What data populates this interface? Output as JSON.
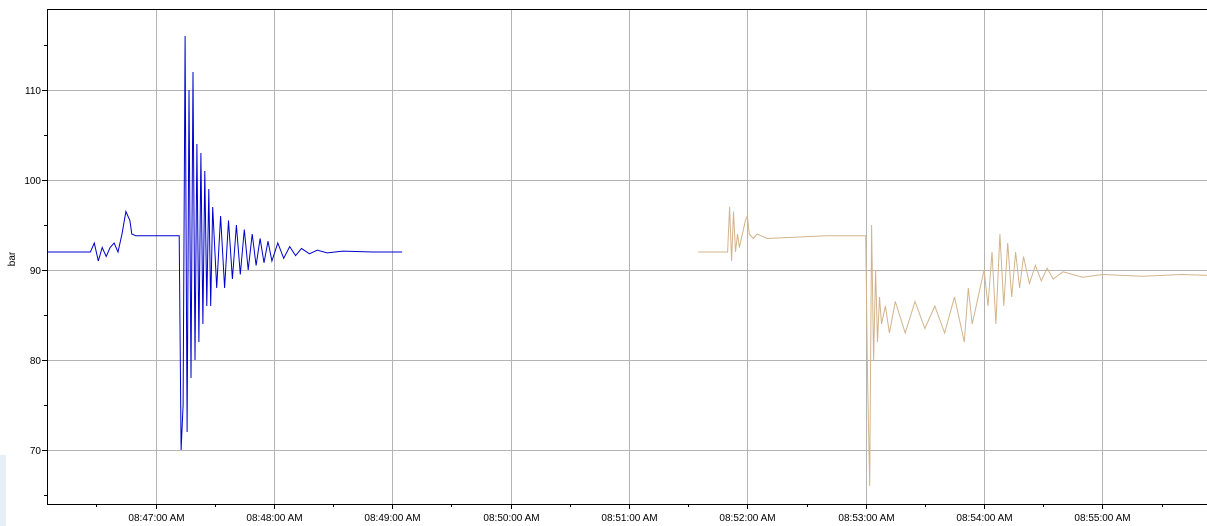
{
  "chart_data": {
    "type": "line",
    "title": "",
    "xlabel": "",
    "ylabel": "bar",
    "ylim": [
      64,
      119
    ],
    "xlim": [
      "08:46:05",
      "08:55:53"
    ],
    "grid": true,
    "legend": "none",
    "y_ticks": [
      70,
      80,
      90,
      100,
      110
    ],
    "y_tick_labels": [
      "70",
      "80",
      "90",
      "100",
      "110"
    ],
    "y_minor_ticks": [
      65,
      75,
      85,
      95,
      105,
      115
    ],
    "x_ticks": [
      "08:47:00",
      "08:48:00",
      "08:49:00",
      "08:50:00",
      "08:51:00",
      "08:52:00",
      "08:53:00",
      "08:54:00",
      "08:55:00"
    ],
    "x_tick_labels": [
      "08:47:00 AM",
      "08:48:00 AM",
      "08:49:00 AM",
      "08:50:00 AM",
      "08:51:00 AM",
      "08:52:00 AM",
      "08:53:00 AM",
      "08:54:00 AM",
      "08:55:00 AM"
    ],
    "series": [
      {
        "color": "#0000cc",
        "x": [
          "08:46:05",
          "08:46:20",
          "08:46:27",
          "08:46:29",
          "08:46:31",
          "08:46:33",
          "08:46:35",
          "08:46:37",
          "08:46:39",
          "08:46:41",
          "08:46:43",
          "08:46:45",
          "08:46:47",
          "08:46:48",
          "08:46:50",
          "08:46:53",
          "08:47:05",
          "08:47:12",
          "08:47:13",
          "08:47:14",
          "08:47:15",
          "08:47:16",
          "08:47:17",
          "08:47:18",
          "08:47:19",
          "08:47:20",
          "08:47:21",
          "08:47:22",
          "08:47:23",
          "08:47:24",
          "08:47:25",
          "08:47:26",
          "08:47:27",
          "08:47:28",
          "08:47:29",
          "08:47:31",
          "08:47:33",
          "08:47:35",
          "08:47:37",
          "08:47:39",
          "08:47:41",
          "08:47:43",
          "08:47:45",
          "08:47:47",
          "08:47:49",
          "08:47:51",
          "08:47:53",
          "08:47:55",
          "08:47:57",
          "08:47:59",
          "08:48:02",
          "08:48:05",
          "08:48:08",
          "08:48:11",
          "08:48:14",
          "08:48:18",
          "08:48:22",
          "08:48:27",
          "08:48:35",
          "08:48:50",
          "08:49:05"
        ],
        "y": [
          92,
          92,
          92,
          93,
          91,
          92.5,
          91.5,
          92.5,
          93,
          92,
          94,
          96.5,
          95.5,
          94,
          93.8,
          93.8,
          93.8,
          93.8,
          70,
          75,
          116,
          72,
          110,
          78,
          112,
          80,
          104,
          82,
          103,
          84,
          101,
          86,
          99,
          86,
          97,
          88,
          96,
          88,
          95.5,
          89,
          95,
          89.5,
          94.5,
          90,
          94,
          90.5,
          93.5,
          90.8,
          93.2,
          91,
          93,
          91.3,
          92.6,
          91.6,
          92.4,
          91.8,
          92.2,
          91.9,
          92.1,
          92,
          92
        ]
      },
      {
        "color": "#d2b48c",
        "x": [
          "08:51:35",
          "08:51:50",
          "08:51:51",
          "08:51:52",
          "08:51:53",
          "08:51:54",
          "08:51:55",
          "08:51:56",
          "08:51:57",
          "08:51:58",
          "08:51:59",
          "08:52:00",
          "08:52:01",
          "08:52:03",
          "08:52:05",
          "08:52:10",
          "08:52:40",
          "08:53:00",
          "08:53:01",
          "08:53:02",
          "08:53:03",
          "08:53:04",
          "08:53:05",
          "08:53:06",
          "08:53:07",
          "08:53:08",
          "08:53:10",
          "08:53:12",
          "08:53:15",
          "08:53:20",
          "08:53:25",
          "08:53:30",
          "08:53:35",
          "08:53:40",
          "08:53:45",
          "08:53:50",
          "08:53:52",
          "08:53:54",
          "08:53:56",
          "08:53:58",
          "08:54:00",
          "08:54:02",
          "08:54:04",
          "08:54:06",
          "08:54:08",
          "08:54:10",
          "08:54:12",
          "08:54:14",
          "08:54:16",
          "08:54:18",
          "08:54:20",
          "08:54:23",
          "08:54:26",
          "08:54:29",
          "08:54:32",
          "08:54:35",
          "08:54:40",
          "08:54:50",
          "08:55:00",
          "08:55:20",
          "08:55:40",
          "08:55:53"
        ],
        "y": [
          92,
          92,
          97,
          91,
          96.5,
          92,
          94,
          92.5,
          93.5,
          94.5,
          95.5,
          96,
          94,
          93.5,
          94,
          93.5,
          93.8,
          93.8,
          77,
          66,
          95,
          80,
          90,
          82,
          87,
          84,
          86,
          83,
          86.5,
          83,
          86.5,
          83.5,
          86,
          83,
          87,
          82,
          88,
          84,
          86,
          88,
          90,
          86,
          92,
          84,
          94,
          86,
          93,
          87,
          92,
          88,
          91.5,
          88.5,
          90.5,
          88.8,
          90.2,
          89,
          89.8,
          89.2,
          89.5,
          89.3,
          89.5,
          89.4
        ]
      }
    ]
  }
}
